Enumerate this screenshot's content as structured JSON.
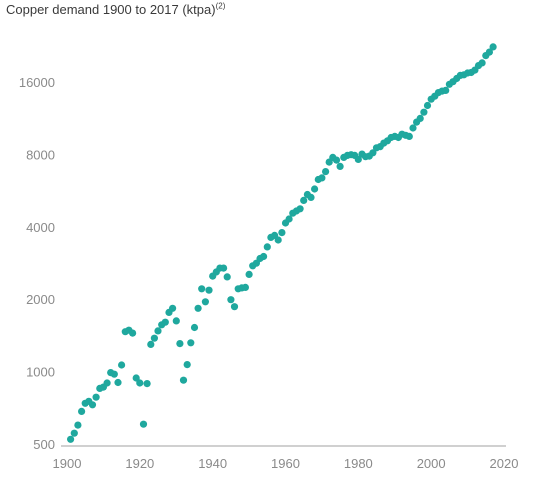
{
  "chart_data": {
    "type": "scatter",
    "title": "Copper demand 1900 to 2017 (ktpa)",
    "title_superscript": "(2)",
    "xlabel": "",
    "ylabel": "",
    "y_scale": "log2",
    "xlim": [
      1900,
      2020
    ],
    "ylim": [
      500,
      22000
    ],
    "x_ticks": [
      1900,
      1920,
      1940,
      1960,
      1980,
      2000,
      2020
    ],
    "y_ticks": [
      500,
      1000,
      2000,
      4000,
      8000,
      16000
    ],
    "grid": false,
    "legend": "none",
    "marker_color": "#1fa89e",
    "axis_color": "#a0a0a0",
    "points": [
      [
        1901,
        528
      ],
      [
        1902,
        560
      ],
      [
        1903,
        605
      ],
      [
        1904,
        690
      ],
      [
        1905,
        745
      ],
      [
        1906,
        760
      ],
      [
        1907,
        735
      ],
      [
        1908,
        790
      ],
      [
        1909,
        860
      ],
      [
        1910,
        870
      ],
      [
        1911,
        905
      ],
      [
        1912,
        1000
      ],
      [
        1913,
        985
      ],
      [
        1914,
        910
      ],
      [
        1915,
        1075
      ],
      [
        1916,
        1480
      ],
      [
        1917,
        1500
      ],
      [
        1918,
        1460
      ],
      [
        1919,
        950
      ],
      [
        1920,
        905
      ],
      [
        1921,
        610
      ],
      [
        1922,
        900
      ],
      [
        1923,
        1310
      ],
      [
        1924,
        1390
      ],
      [
        1925,
        1490
      ],
      [
        1926,
        1580
      ],
      [
        1927,
        1620
      ],
      [
        1928,
        1780
      ],
      [
        1929,
        1850
      ],
      [
        1930,
        1640
      ],
      [
        1931,
        1320
      ],
      [
        1932,
        930
      ],
      [
        1933,
        1080
      ],
      [
        1934,
        1330
      ],
      [
        1935,
        1540
      ],
      [
        1936,
        1850
      ],
      [
        1937,
        2230
      ],
      [
        1938,
        1970
      ],
      [
        1939,
        2200
      ],
      [
        1940,
        2520
      ],
      [
        1941,
        2620
      ],
      [
        1942,
        2720
      ],
      [
        1943,
        2720
      ],
      [
        1944,
        2500
      ],
      [
        1945,
        2010
      ],
      [
        1946,
        1880
      ],
      [
        1947,
        2230
      ],
      [
        1948,
        2250
      ],
      [
        1949,
        2260
      ],
      [
        1950,
        2560
      ],
      [
        1951,
        2780
      ],
      [
        1952,
        2850
      ],
      [
        1953,
        2980
      ],
      [
        1954,
        3040
      ],
      [
        1955,
        3330
      ],
      [
        1956,
        3650
      ],
      [
        1957,
        3720
      ],
      [
        1958,
        3560
      ],
      [
        1959,
        3820
      ],
      [
        1960,
        4190
      ],
      [
        1961,
        4350
      ],
      [
        1962,
        4600
      ],
      [
        1963,
        4700
      ],
      [
        1964,
        4800
      ],
      [
        1965,
        5200
      ],
      [
        1966,
        5500
      ],
      [
        1967,
        5350
      ],
      [
        1968,
        5800
      ],
      [
        1969,
        6350
      ],
      [
        1970,
        6450
      ],
      [
        1971,
        6850
      ],
      [
        1972,
        7500
      ],
      [
        1973,
        7850
      ],
      [
        1974,
        7650
      ],
      [
        1975,
        7200
      ],
      [
        1976,
        7850
      ],
      [
        1977,
        8000
      ],
      [
        1978,
        8050
      ],
      [
        1979,
        8000
      ],
      [
        1980,
        7700
      ],
      [
        1981,
        8100
      ],
      [
        1982,
        7900
      ],
      [
        1983,
        7950
      ],
      [
        1984,
        8200
      ],
      [
        1985,
        8600
      ],
      [
        1986,
        8700
      ],
      [
        1987,
        9000
      ],
      [
        1988,
        9200
      ],
      [
        1989,
        9500
      ],
      [
        1990,
        9600
      ],
      [
        1991,
        9500
      ],
      [
        1992,
        9800
      ],
      [
        1993,
        9700
      ],
      [
        1994,
        9600
      ],
      [
        1995,
        10400
      ],
      [
        1996,
        11000
      ],
      [
        1997,
        11400
      ],
      [
        1998,
        12100
      ],
      [
        1999,
        12900
      ],
      [
        2000,
        13700
      ],
      [
        2001,
        14100
      ],
      [
        2002,
        14600
      ],
      [
        2003,
        14800
      ],
      [
        2004,
        14900
      ],
      [
        2005,
        15800
      ],
      [
        2006,
        16200
      ],
      [
        2007,
        16700
      ],
      [
        2008,
        17200
      ],
      [
        2009,
        17300
      ],
      [
        2010,
        17600
      ],
      [
        2011,
        17700
      ],
      [
        2012,
        18100
      ],
      [
        2013,
        18900
      ],
      [
        2014,
        19400
      ],
      [
        2015,
        20800
      ],
      [
        2016,
        21500
      ],
      [
        2017,
        22600
      ]
    ]
  }
}
